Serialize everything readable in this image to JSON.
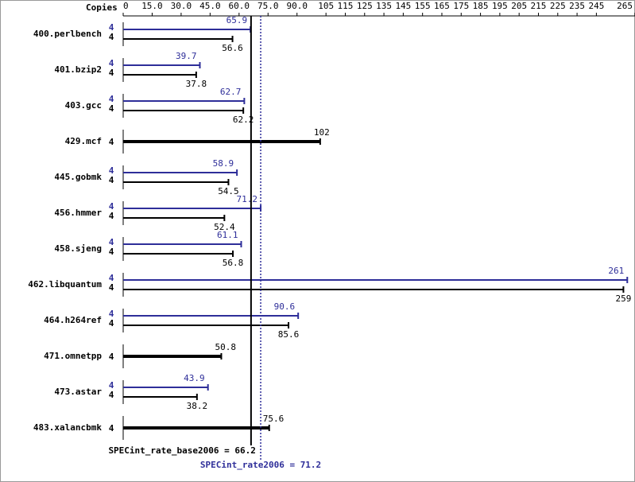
{
  "chart_data": {
    "type": "bar",
    "orientation": "horizontal",
    "x_label": "Copies",
    "xlim": [
      0,
      265
    ],
    "xticks": [
      0,
      {
        "value": 15,
        "label": "15.0"
      },
      {
        "value": 30,
        "label": "30.0"
      },
      {
        "value": 45,
        "label": "45.0"
      },
      {
        "value": 60,
        "label": "60.0"
      },
      {
        "value": 75,
        "label": "75.0"
      },
      {
        "value": 90,
        "label": "90.0"
      },
      105,
      115,
      125,
      135,
      145,
      155,
      165,
      175,
      185,
      195,
      205,
      215,
      225,
      235,
      245,
      265
    ],
    "categories": [
      "400.perlbench",
      "401.bzip2",
      "403.gcc",
      "429.mcf",
      "445.gobmk",
      "456.hmmer",
      "458.sjeng",
      "462.libquantum",
      "464.h264ref",
      "471.omnetpp",
      "473.astar",
      "483.xalancbmk"
    ],
    "series": [
      {
        "color": "#2e2e99",
        "copies": [
          4,
          4,
          4,
          null,
          4,
          4,
          4,
          4,
          4,
          null,
          4,
          null
        ],
        "values": [
          65.9,
          39.7,
          62.7,
          null,
          58.9,
          71.2,
          61.1,
          261,
          90.6,
          null,
          43.9,
          null
        ]
      },
      {
        "color": "#000000",
        "copies": [
          4,
          4,
          4,
          4,
          4,
          4,
          4,
          4,
          4,
          4,
          4,
          4
        ],
        "values": [
          56.6,
          37.8,
          62.2,
          102,
          54.5,
          52.4,
          56.8,
          259,
          85.6,
          50.8,
          38.2,
          75.6
        ]
      }
    ],
    "reference_lines": [
      {
        "label": "SPECint_rate_base2006 = 66.2",
        "value": 66.2,
        "color": "#000000",
        "style": "solid"
      },
      {
        "label": "SPECint_rate2006 = 71.2",
        "value": 71.2,
        "color": "#2e2e99",
        "style": "dotted"
      }
    ]
  }
}
